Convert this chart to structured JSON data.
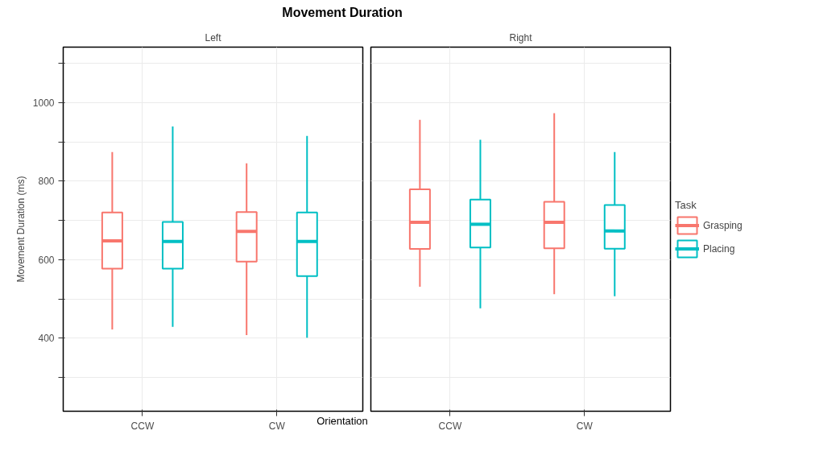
{
  "chart_data": [
    {
      "type": "box",
      "title": "Movement Duration",
      "subtitle": "Left",
      "xlabel": "Orientation",
      "ylabel": "Movement Duration (ms)",
      "categories": [
        "CCW",
        "CW"
      ],
      "ylim": [
        214,
        1141
      ],
      "yticks": [
        {
          "value": 300,
          "label": null
        },
        400,
        {
          "value": 500,
          "label": null
        },
        600,
        {
          "value": 700,
          "label": null
        },
        800,
        {
          "value": 900,
          "label": null
        },
        1000,
        {
          "value": 1100,
          "label": null
        }
      ],
      "grid": true,
      "legend": false,
      "series": [
        {
          "color": "#f8766d",
          "boxes": [
            {
              "low": 422,
              "q1": 577,
              "median": 648,
              "q3": 720,
              "high": 874
            },
            {
              "low": 408,
              "q1": 595,
              "median": 672,
              "q3": 721,
              "high": 845
            }
          ]
        },
        {
          "color": "#00bfc4",
          "boxes": [
            {
              "low": 429,
              "q1": 577,
              "median": 646,
              "q3": 696,
              "high": 939
            },
            {
              "low": 401,
              "q1": 558,
              "median": 646,
              "q3": 720,
              "high": 915
            }
          ]
        }
      ]
    },
    {
      "type": "box",
      "subtitle": "Right",
      "legend_title": "Task",
      "categories": [
        "CCW",
        "CW"
      ],
      "ylim": [
        214,
        1141
      ],
      "yticks": [
        {
          "value": 300,
          "label": null
        },
        400,
        {
          "value": 500,
          "label": null
        },
        600,
        {
          "value": 700,
          "label": null
        },
        800,
        {
          "value": 900,
          "label": null
        },
        1000,
        {
          "value": 1100,
          "label": null
        }
      ],
      "grid": true,
      "legend": "right",
      "tick_labels": "x",
      "series": [
        {
          "name": "Grasping",
          "color": "#f8766d",
          "boxes": [
            {
              "low": 531,
              "q1": 627,
              "median": 695,
              "q3": 779,
              "high": 956
            },
            {
              "low": 512,
              "q1": 629,
              "median": 695,
              "q3": 747,
              "high": 973
            }
          ]
        },
        {
          "name": "Placing",
          "color": "#00bfc4",
          "boxes": [
            {
              "low": 476,
              "q1": 631,
              "median": 690,
              "q3": 753,
              "high": 905
            },
            {
              "low": 507,
              "q1": 628,
              "median": 673,
              "q3": 739,
              "high": 874
            }
          ]
        }
      ]
    }
  ]
}
